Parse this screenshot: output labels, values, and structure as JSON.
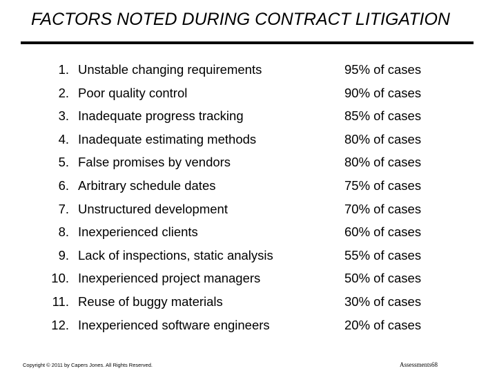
{
  "slide": {
    "title": "FACTORS NOTED DURING CONTRACT LITIGATION",
    "factors": [
      {
        "number": "1.",
        "label": "Unstable changing requirements",
        "percent": "95% of cases"
      },
      {
        "number": "2.",
        "label": "Poor quality control",
        "percent": "90% of cases"
      },
      {
        "number": "3.",
        "label": "Inadequate progress tracking",
        "percent": "85% of cases"
      },
      {
        "number": "4.",
        "label": "Inadequate estimating methods",
        "percent": "80% of cases"
      },
      {
        "number": "5.",
        "label": "False promises by vendors",
        "percent": "80% of cases"
      },
      {
        "number": "6.",
        "label": "Arbitrary schedule dates",
        "percent": "75% of cases"
      },
      {
        "number": "7.",
        "label": "Unstructured development",
        "percent": "70% of cases"
      },
      {
        "number": "8.",
        "label": "Inexperienced clients",
        "percent": "60% of cases"
      },
      {
        "number": "9.",
        "label": "Lack of inspections, static analysis",
        "percent": "55% of cases"
      },
      {
        "number": "10.",
        "label": "Inexperienced project managers",
        "percent": "50% of cases"
      },
      {
        "number": "11.",
        "label": "Reuse of buggy materials",
        "percent": "30% of cases"
      },
      {
        "number": "12.",
        "label": "Inexperienced software engineers",
        "percent": "20% of cases"
      }
    ],
    "footer": {
      "copyright": "Copyright © 2011 by Capers Jones. All Rights Reserved.",
      "page_label": "Assessments68"
    }
  }
}
